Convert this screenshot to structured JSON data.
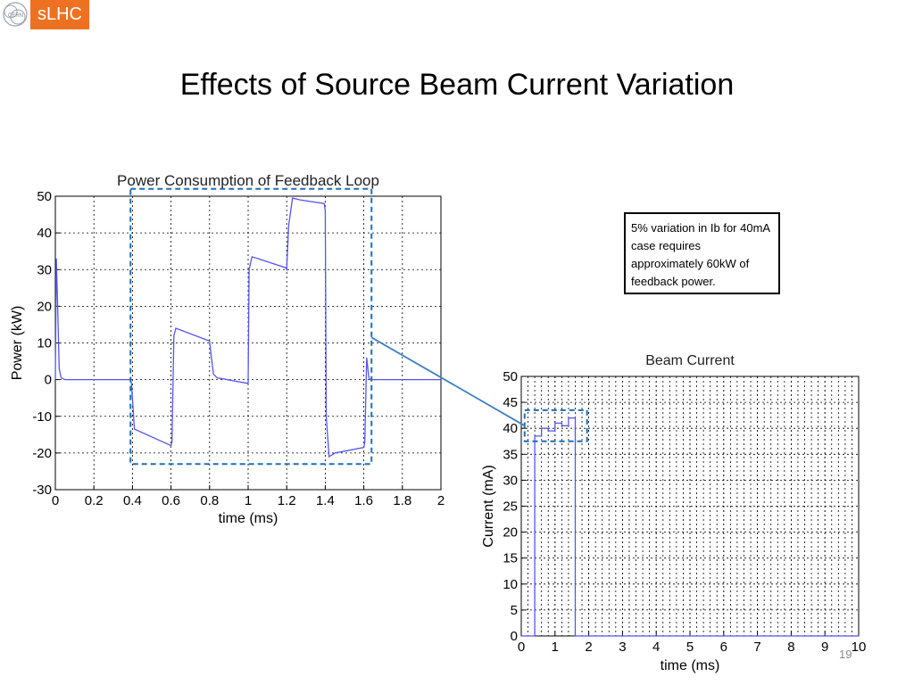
{
  "slide": {
    "title": "Effects of Source Beam Current Variation",
    "logo_text": "sLHC",
    "logo_emblem_text": "CERN",
    "note": "5% variation in Ib for 40mA case requires approximately 60kW of feedback power.",
    "slide_number": "19",
    "colors": {
      "logo": "#ee7122",
      "trace": "#5555ee",
      "highlight": "#1f6fb5",
      "connector": "#3d7fc4"
    }
  },
  "chart_data": [
    {
      "type": "line",
      "title": "Power Consumption of Feedback Loop",
      "xlabel": "time (ms)",
      "ylabel": "Power (kW)",
      "xlim": [
        0,
        2
      ],
      "ylim": [
        -30,
        50
      ],
      "xticks": [
        0,
        0.2,
        0.4,
        0.6,
        0.8,
        1,
        1.2,
        1.4,
        1.6,
        1.8,
        2
      ],
      "xtick_labels": [
        "0",
        "0.2",
        "0.4",
        "0.6",
        "0.8",
        "1",
        "1.2",
        "1.4",
        "1.6",
        "1.8",
        "2"
      ],
      "yticks": [
        -30,
        -20,
        -10,
        0,
        10,
        20,
        30,
        40,
        50
      ],
      "grid": true,
      "highlight_box": {
        "x": [
          0.39,
          1.64
        ],
        "y": [
          -23,
          52
        ]
      },
      "series": [
        {
          "x": [
            0,
            0.005,
            0.012,
            0.02,
            0.03,
            0.05,
            0.1,
            0.2,
            0.39,
            0.395,
            0.41,
            0.6,
            0.605,
            0.615,
            0.625,
            0.8,
            0.805,
            0.82,
            0.84,
            0.995,
            1.0,
            1.005,
            1.02,
            1.05,
            1.195,
            1.2,
            1.21,
            1.23,
            1.27,
            1.395,
            1.4,
            1.405,
            1.42,
            1.45,
            1.6,
            1.605,
            1.615,
            1.625,
            1.63,
            1.64,
            2.0
          ],
          "y": [
            0,
            33,
            20,
            3,
            0.5,
            0,
            0,
            0,
            0,
            -1,
            -13.5,
            -18,
            -17,
            12,
            14,
            10.5,
            8,
            1.5,
            0.5,
            -1,
            -1,
            30,
            33.5,
            33,
            30.5,
            30,
            42,
            49.5,
            49,
            48,
            46,
            -10,
            -21,
            -20,
            -18.5,
            -17,
            6,
            1,
            0,
            0,
            0
          ]
        }
      ]
    },
    {
      "type": "line",
      "title": "Beam Current",
      "xlabel": "time (ms)",
      "ylabel": "Current (mA)",
      "xlim": [
        0,
        10
      ],
      "ylim": [
        0,
        50
      ],
      "xticks": [
        0,
        1,
        2,
        3,
        4,
        5,
        6,
        7,
        8,
        9,
        10
      ],
      "xtick_labels": [
        "0",
        "1",
        "2",
        "3",
        "4",
        "5",
        "6",
        "7",
        "8",
        "9",
        "10"
      ],
      "yticks": [
        0,
        5,
        10,
        15,
        20,
        25,
        30,
        35,
        40,
        45,
        50
      ],
      "minor_grid_x": 0.2,
      "grid": true,
      "highlight_box": {
        "x": [
          0.1,
          1.95
        ],
        "y": [
          37.5,
          43.5
        ]
      },
      "series": [
        {
          "x": [
            0,
            0.4,
            0.4,
            0.6,
            0.6,
            0.8,
            0.8,
            1.0,
            1.0,
            1.2,
            1.2,
            1.4,
            1.4,
            1.6,
            1.6,
            10
          ],
          "y": [
            0,
            0,
            38.5,
            38.5,
            40,
            40,
            39.5,
            39.5,
            41,
            41,
            40.5,
            40.5,
            42,
            42,
            0,
            0
          ]
        }
      ]
    }
  ]
}
